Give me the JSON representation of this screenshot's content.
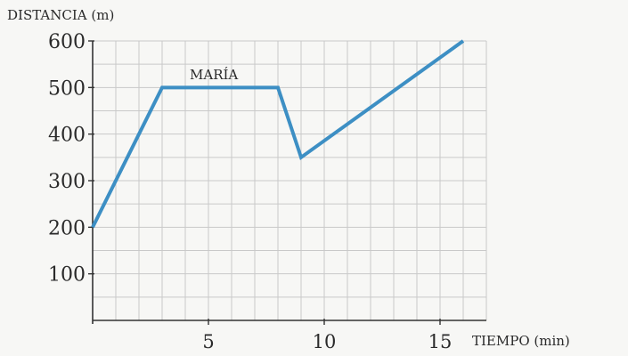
{
  "chart_data": {
    "type": "line",
    "ylabel": "DISTANCIA (m)",
    "xlabel": "TIEMPO (min)",
    "xlim": [
      0,
      17
    ],
    "ylim": [
      0,
      600
    ],
    "x_ticks": [
      5,
      10,
      15
    ],
    "y_ticks": [
      100,
      200,
      300,
      400,
      500,
      600
    ],
    "x_minor_step": 1,
    "y_minor_step": 50,
    "grid": true,
    "colors": {
      "line": "#3d8fc4",
      "grid": "#c9c9c9",
      "axis": "#333333"
    },
    "series": [
      {
        "name": "MARÍA",
        "x": [
          0,
          3,
          8,
          9,
          16
        ],
        "y": [
          200,
          500,
          500,
          350,
          600
        ]
      }
    ]
  }
}
